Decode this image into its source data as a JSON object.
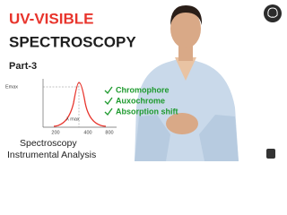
{
  "header": {
    "title_line1": "UV-VISIBLE",
    "title_line2": "SPECTROSCOPY",
    "part": "Part-3"
  },
  "sketch": {
    "y_label": "Emax",
    "peak_label": "λ max",
    "x_labels": [
      "200",
      "400",
      "800"
    ]
  },
  "topics": [
    "Chromophore",
    "Auxochrome",
    "Absorption shift"
  ],
  "footer": {
    "line1": "Spectroscopy",
    "line2": "Instrumental Analysis"
  }
}
